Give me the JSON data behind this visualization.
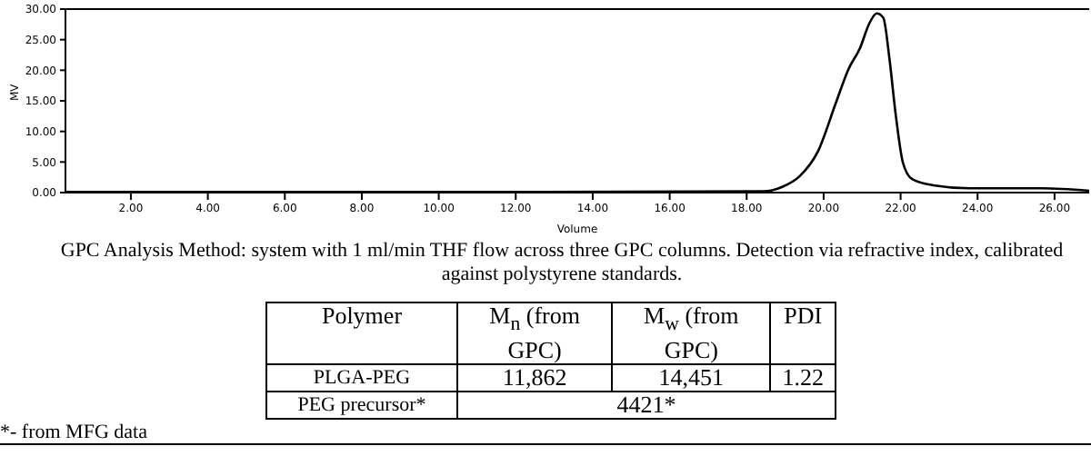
{
  "chart_data": {
    "type": "line",
    "xlabel": "Volume",
    "ylabel": "MV",
    "x": [
      0.3,
      12.77,
      18.44,
      18.91,
      19.38,
      19.85,
      20.32,
      20.64,
      20.95,
      21.19,
      21.38,
      21.55,
      21.71,
      21.87,
      22.06,
      22.3,
      22.85,
      23.79,
      25.68,
      26.9
    ],
    "series": [
      {
        "color": "#000000",
        "values": [
          0.1,
          0.1,
          0.2,
          0.9,
          2.7,
          6.7,
          14.7,
          20.1,
          23.7,
          27.7,
          29.3,
          28.6,
          21.9,
          12.9,
          4.9,
          2.2,
          1.2,
          0.7,
          0.7,
          0.3
        ]
      }
    ],
    "xlim": [
      0.3,
      26.9
    ],
    "xticks": [
      {
        "value": 2,
        "label": "2.00"
      },
      {
        "value": 4,
        "label": "4.00"
      },
      {
        "value": 6,
        "label": "6.00"
      },
      {
        "value": 8,
        "label": "8.00"
      },
      {
        "value": 10,
        "label": "10.00"
      },
      {
        "value": 12,
        "label": "12.00"
      },
      {
        "value": 14,
        "label": "14.00"
      },
      {
        "value": 16,
        "label": "16.00"
      },
      {
        "value": 18,
        "label": "18.00"
      },
      {
        "value": 20,
        "label": "20.00"
      },
      {
        "value": 22,
        "label": "22.00"
      },
      {
        "value": 24,
        "label": "24.00"
      },
      {
        "value": 26,
        "label": "26.00"
      }
    ],
    "ylim": [
      0,
      30
    ],
    "yticks": [
      {
        "value": 0,
        "label": "0.00"
      },
      {
        "value": 5,
        "label": "5.00"
      },
      {
        "value": 10,
        "label": "10.00"
      },
      {
        "value": 15,
        "label": "15.00"
      },
      {
        "value": 20,
        "label": "20.00"
      },
      {
        "value": 25,
        "label": "25.00"
      },
      {
        "value": 30,
        "label": "30.00"
      }
    ],
    "grid": false,
    "legend": false,
    "marker": "none",
    "line_style": "solid",
    "annotations": [
      "GPC Analysis Method: system with 1 ml/min THF flow across three GPC columns. Detection via refractive index, calibrated against polystyrene standards.",
      "Polymer",
      "M$_{n}$ (from GPC)",
      "M$_{w}$ (from GPC)",
      "PDI",
      "PLGA-PEG",
      "11,862",
      "14,451",
      "1.22",
      "PEG precursor*",
      "4421*",
      "*- from MFG data"
    ]
  }
}
